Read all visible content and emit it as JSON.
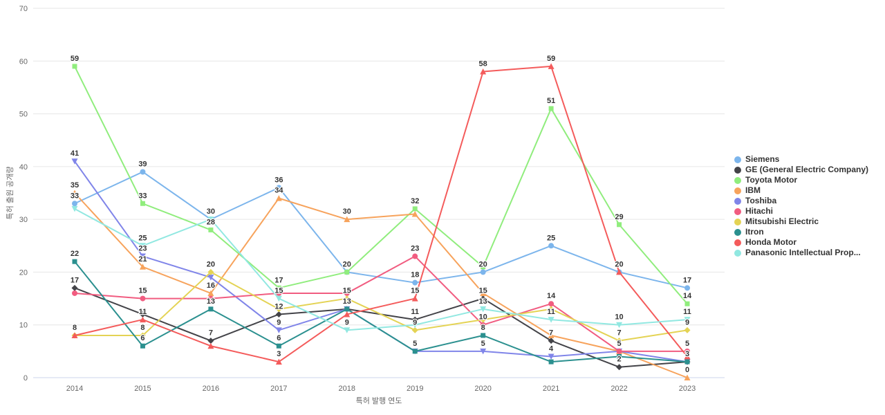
{
  "chart_data": {
    "type": "line",
    "title": "",
    "xlabel": "특허 발행 연도",
    "ylabel": "특허 출원 공개량",
    "categories": [
      "2014",
      "2015",
      "2016",
      "2017",
      "2018",
      "2019",
      "2020",
      "2021",
      "2022",
      "2023"
    ],
    "ylim": [
      0,
      70
    ],
    "yticks": [
      0,
      10,
      20,
      30,
      40,
      50,
      60,
      70
    ],
    "grid": true,
    "legend_position": "right",
    "colors": {
      "grid": "#e6e6e6",
      "axis_line": "#ccd6eb",
      "tick_text": "#666666",
      "label_text": "#333333"
    },
    "series": [
      {
        "name": "Siemens",
        "color": "#7cb5ec",
        "marker": "circle",
        "values": [
          33,
          39,
          30,
          36,
          20,
          18,
          20,
          25,
          20,
          17
        ],
        "label_hidden": [
          4,
          8
        ]
      },
      {
        "name": "GE (General Electric Company)",
        "color": "#434348",
        "marker": "diamond",
        "values": [
          17,
          12,
          7,
          12,
          13,
          11,
          15,
          7,
          2,
          3
        ],
        "label_hidden": [
          1,
          4
        ]
      },
      {
        "name": "Toyota Motor",
        "color": "#90ed7d",
        "marker": "square",
        "values": [
          59,
          33,
          28,
          17,
          20,
          32,
          21,
          51,
          29,
          14
        ],
        "label_hidden": [
          6
        ]
      },
      {
        "name": "IBM",
        "color": "#f7a35c",
        "marker": "triangle",
        "values": [
          35,
          21,
          16,
          34,
          30,
          31,
          16,
          8,
          5,
          0
        ],
        "label_hidden": [
          5,
          6,
          7,
          8
        ]
      },
      {
        "name": "Toshiba",
        "color": "#8085e9",
        "marker": "triangle-down",
        "values": [
          41,
          23,
          19,
          9,
          13,
          5,
          5,
          4,
          5,
          3
        ],
        "label_hidden": [
          2,
          4,
          5,
          8,
          9
        ]
      },
      {
        "name": "Hitachi",
        "color": "#f15c80",
        "marker": "circle",
        "values": [
          16,
          15,
          15,
          16,
          16,
          23,
          10,
          14,
          5,
          5
        ],
        "label_hidden": [
          0,
          2,
          3,
          4
        ]
      },
      {
        "name": "Mitsubishi Electric",
        "color": "#e4d354",
        "marker": "diamond",
        "values": [
          8,
          8,
          20,
          13,
          15,
          9,
          11,
          13,
          7,
          9
        ],
        "label_hidden": [
          3,
          6,
          7
        ]
      },
      {
        "name": "Itron",
        "color": "#2b908f",
        "marker": "square",
        "values": [
          22,
          6,
          13,
          6,
          13,
          5,
          8,
          3,
          4,
          3
        ],
        "label_hidden": [
          7,
          8
        ]
      },
      {
        "name": "Honda Motor",
        "color": "#f45b5b",
        "marker": "triangle",
        "values": [
          8,
          11,
          6,
          3,
          12,
          15,
          58,
          59,
          20,
          4
        ],
        "label_hidden": [
          2,
          4,
          9
        ]
      },
      {
        "name": "Panasonic Intellectual Prop...",
        "color": "#91e8e1",
        "marker": "triangle-down",
        "values": [
          32,
          25,
          30,
          15,
          9,
          10,
          13,
          11,
          10,
          11
        ],
        "label_hidden": [
          0,
          2,
          5
        ]
      }
    ]
  }
}
